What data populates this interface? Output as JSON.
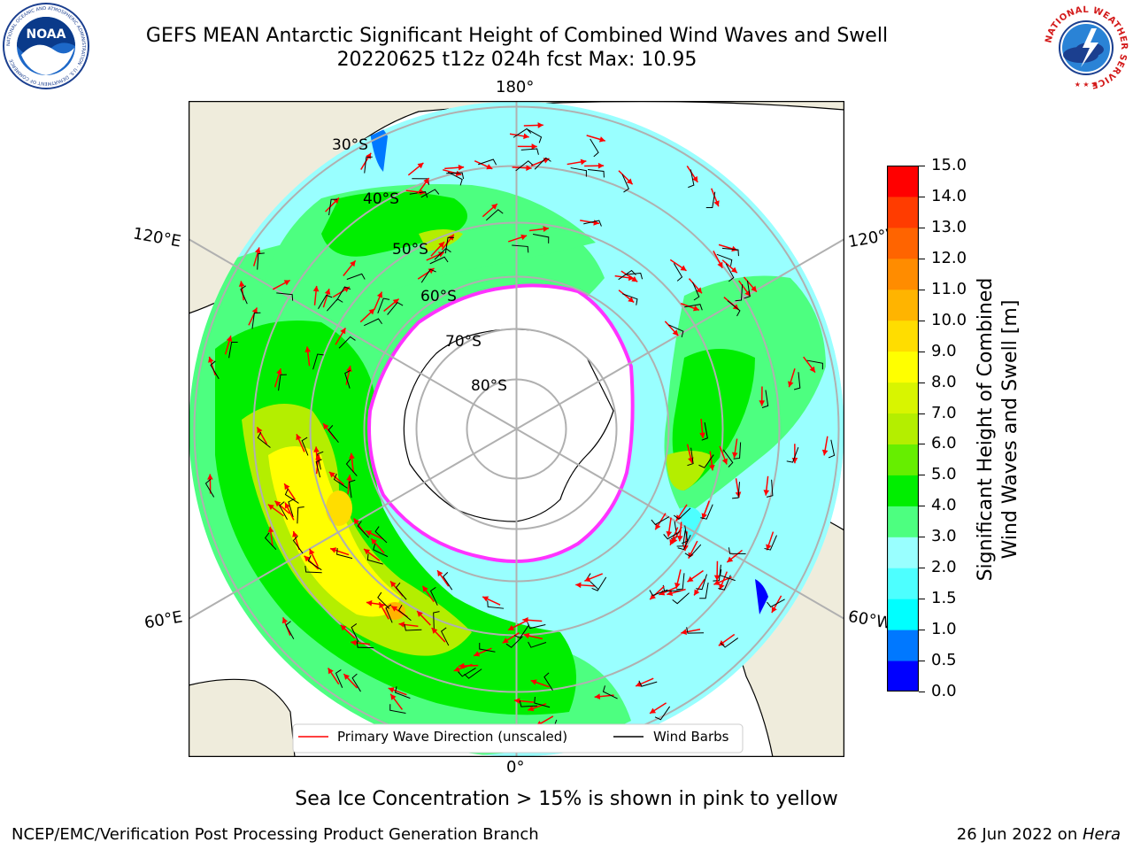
{
  "header": {
    "title_line1": "GEFS MEAN Antarctic Significant Height of Combined Wind Waves and Swell",
    "title_line2": "20220625 t12z 024h fcst   Max: 10.95"
  },
  "map": {
    "projection": "south-polar-stereographic",
    "lon_labels": [
      "180°",
      "120°E",
      "120°W",
      "60°E",
      "60°W",
      "0°"
    ],
    "lat_labels": [
      "30°S",
      "40°S",
      "50°S",
      "60°S",
      "70°S",
      "80°S"
    ],
    "legend": {
      "wave_direction": "Primary Wave Direction (unscaled)",
      "wind_barbs": "Wind Barbs"
    },
    "colors": {
      "land": "#efecdc",
      "ice": "#ffffff",
      "ice_edge": "#ff33ff",
      "grid": "#b0b0b0",
      "wave_arrow": "#ff0000"
    }
  },
  "colorbar": {
    "label_line1": "Significant Height of Combined",
    "label_line2": "Wind Waves and Swell [m]",
    "ticks": [
      "15.0",
      "14.0",
      "13.0",
      "12.0",
      "11.0",
      "10.0",
      "9.0",
      "8.0",
      "7.0",
      "6.0",
      "5.0",
      "4.0",
      "3.0",
      "2.0",
      "1.5",
      "1.0",
      "0.5",
      "0.0"
    ],
    "levels_bottom_to_top": [
      0.0,
      0.5,
      1.0,
      1.5,
      2.0,
      3.0,
      4.0,
      5.0,
      6.0,
      7.0,
      8.0,
      9.0,
      10.0,
      11.0,
      12.0,
      13.0,
      14.0,
      15.0
    ],
    "colors_bottom_to_top": [
      "#0000ff",
      "#0078ff",
      "#00ffff",
      "#4dffff",
      "#99ffff",
      "#4dff80",
      "#00ee00",
      "#66ee00",
      "#b4ee00",
      "#d8f500",
      "#ffff00",
      "#ffdd00",
      "#ffb400",
      "#ff8c00",
      "#ff6400",
      "#ff3c00",
      "#ff0000"
    ]
  },
  "ice_note": "Sea Ice Concentration > 15% is shown in pink to yellow",
  "footer": {
    "left": "NCEP/EMC/Verification Post Processing Product Generation Branch",
    "right_prefix": "26 Jun 2022 on ",
    "right_italic": "Hera"
  },
  "logos": {
    "left": {
      "text": "NOAA",
      "ring": "NATIONAL OCEANIC AND ATMOSPHERIC ADMINISTRATION · U.S. DEPARTMENT OF COMMERCE"
    },
    "right": {
      "ring": "NATIONAL WEATHER SERVICE"
    }
  }
}
